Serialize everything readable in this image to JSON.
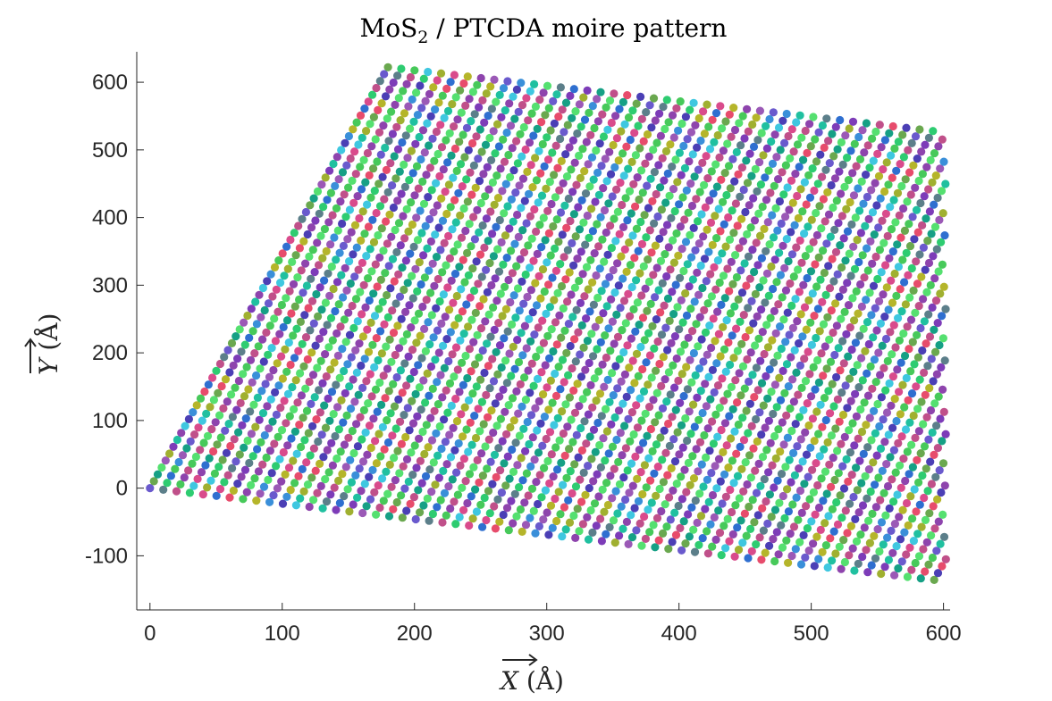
{
  "chart_data": {
    "type": "scatter",
    "title": {
      "prefix": "MoS",
      "subscript": "2",
      "suffix": " / PTCDA moire pattern"
    },
    "xlabel": {
      "symbol": "X",
      "unit": " (Å)"
    },
    "ylabel": {
      "symbol": "Y",
      "unit": " (Å)"
    },
    "xlim": [
      -10,
      605
    ],
    "ylim": [
      -180,
      645
    ],
    "xticks": [
      0,
      100,
      200,
      300,
      400,
      500,
      600
    ],
    "xtick_labels": [
      "0",
      "100",
      "200",
      "300",
      "400",
      "500",
      "600"
    ],
    "yticks": [
      -100,
      0,
      100,
      200,
      300,
      400,
      500,
      600
    ],
    "ytick_labels": [
      "-100",
      "0",
      "100",
      "200",
      "300",
      "400",
      "500",
      "600"
    ],
    "grid": false,
    "lattice": {
      "origin": [
        0,
        0
      ],
      "vector_a": [
        10.05,
        -2.3
      ],
      "vector_b": [
        2.95,
        10.2
      ],
      "n_a": 60,
      "n_b": 62
    },
    "marker_colors": [
      "#6a5acd",
      "#2ecc71",
      "#e74c6c",
      "#3a8fd9",
      "#8e44ad",
      "#a0b030",
      "#16a085",
      "#5c7f8a",
      "#d94b8c",
      "#47c95a",
      "#4b3fb5",
      "#20c0a0",
      "#9b59b6",
      "#6aa84f",
      "#c0508a",
      "#2f6fd0",
      "#b5b52a",
      "#3fc7e0",
      "#7d3cb8",
      "#55e070"
    ]
  }
}
